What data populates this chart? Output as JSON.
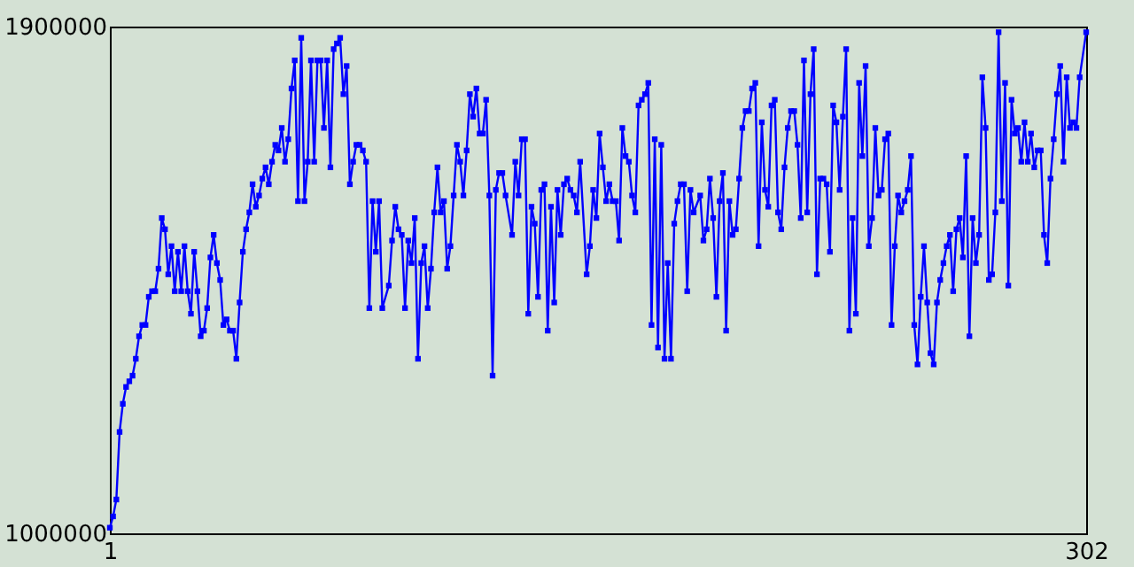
{
  "chart_data": {
    "type": "line",
    "xlim": [
      1,
      302
    ],
    "ylim": [
      1000000,
      1900000
    ],
    "xticks": [
      1,
      302
    ],
    "yticks": [
      1000000,
      1900000
    ],
    "marker": "square",
    "line_style": "solid",
    "x": [
      1,
      2,
      3,
      4,
      5,
      6,
      7,
      8,
      9,
      10,
      11,
      12,
      13,
      14,
      15,
      16,
      17,
      18,
      19,
      20,
      21,
      22,
      23,
      24,
      25,
      26,
      27,
      28,
      29,
      30,
      31,
      32,
      33,
      34,
      35,
      36,
      37,
      38,
      39,
      40,
      41,
      42,
      43,
      44,
      45,
      46,
      47,
      48,
      49,
      50,
      51,
      52,
      53,
      54,
      55,
      56,
      57,
      58,
      59,
      60,
      61,
      62,
      63,
      64,
      65,
      66,
      67,
      68,
      69,
      70,
      71,
      72,
      73,
      74,
      75,
      76,
      77,
      78,
      79,
      80,
      81,
      82,
      83,
      84,
      85,
      87,
      88,
      89,
      90,
      91,
      92,
      93,
      94,
      95,
      96,
      97,
      98,
      99,
      100,
      101,
      102,
      103,
      104,
      105,
      106,
      107,
      108,
      109,
      110,
      111,
      112,
      113,
      114,
      115,
      116,
      117,
      118,
      119,
      120,
      121,
      122,
      123,
      125,
      126,
      127,
      128,
      129,
      130,
      131,
      132,
      133,
      134,
      135,
      136,
      137,
      138,
      139,
      140,
      141,
      142,
      143,
      144,
      145,
      146,
      148,
      149,
      150,
      151,
      152,
      153,
      154,
      155,
      156,
      157,
      158,
      159,
      160,
      161,
      162,
      163,
      164,
      165,
      166,
      167,
      168,
      169,
      170,
      171,
      172,
      173,
      174,
      175,
      176,
      177,
      178,
      179,
      180,
      181,
      183,
      184,
      185,
      186,
      187,
      188,
      189,
      190,
      191,
      192,
      193,
      194,
      195,
      196,
      197,
      198,
      199,
      200,
      201,
      202,
      203,
      204,
      205,
      206,
      207,
      208,
      209,
      210,
      211,
      212,
      213,
      214,
      215,
      216,
      217,
      218,
      219,
      220,
      221,
      222,
      223,
      224,
      225,
      226,
      227,
      228,
      229,
      230,
      231,
      232,
      233,
      234,
      235,
      236,
      237,
      238,
      239,
      240,
      241,
      242,
      243,
      244,
      245,
      246,
      247,
      248,
      249,
      250,
      251,
      252,
      253,
      254,
      255,
      256,
      257,
      258,
      259,
      260,
      261,
      262,
      263,
      264,
      265,
      266,
      267,
      268,
      269,
      270,
      271,
      272,
      273,
      274,
      275,
      276,
      277,
      278,
      279,
      280,
      281,
      282,
      283,
      284,
      285,
      286,
      287,
      288,
      289,
      290,
      291,
      292,
      293,
      294,
      295,
      296,
      297,
      298,
      299,
      300,
      302
    ],
    "series": [
      {
        "color": "#0000ff",
        "values": [
          1010000,
          1030000,
          1060000,
          1180000,
          1230000,
          1260000,
          1270000,
          1280000,
          1310000,
          1350000,
          1370000,
          1370000,
          1420000,
          1430000,
          1430000,
          1470000,
          1560000,
          1540000,
          1460000,
          1510000,
          1430000,
          1500000,
          1430000,
          1510000,
          1430000,
          1390000,
          1500000,
          1430000,
          1350000,
          1360000,
          1400000,
          1490000,
          1530000,
          1480000,
          1450000,
          1370000,
          1380000,
          1360000,
          1360000,
          1310000,
          1410000,
          1500000,
          1540000,
          1570000,
          1620000,
          1580000,
          1600000,
          1630000,
          1650000,
          1620000,
          1660000,
          1690000,
          1680000,
          1720000,
          1660000,
          1700000,
          1790000,
          1840000,
          1590000,
          1880000,
          1590000,
          1660000,
          1840000,
          1660000,
          1840000,
          1840000,
          1720000,
          1840000,
          1650000,
          1860000,
          1870000,
          1880000,
          1780000,
          1830000,
          1620000,
          1660000,
          1690000,
          1690000,
          1680000,
          1660000,
          1400000,
          1590000,
          1500000,
          1590000,
          1400000,
          1440000,
          1520000,
          1580000,
          1540000,
          1530000,
          1400000,
          1520000,
          1480000,
          1560000,
          1310000,
          1480000,
          1510000,
          1400000,
          1470000,
          1570000,
          1650000,
          1570000,
          1590000,
          1470000,
          1510000,
          1600000,
          1690000,
          1660000,
          1600000,
          1680000,
          1780000,
          1740000,
          1790000,
          1710000,
          1710000,
          1770000,
          1600000,
          1280000,
          1610000,
          1640000,
          1640000,
          1600000,
          1530000,
          1660000,
          1600000,
          1700000,
          1700000,
          1390000,
          1580000,
          1550000,
          1420000,
          1610000,
          1620000,
          1360000,
          1580000,
          1410000,
          1610000,
          1530000,
          1620000,
          1630000,
          1610000,
          1600000,
          1570000,
          1660000,
          1460000,
          1510000,
          1610000,
          1560000,
          1710000,
          1650000,
          1590000,
          1620000,
          1590000,
          1590000,
          1520000,
          1720000,
          1670000,
          1660000,
          1600000,
          1570000,
          1760000,
          1770000,
          1780000,
          1800000,
          1370000,
          1700000,
          1330000,
          1690000,
          1310000,
          1480000,
          1310000,
          1550000,
          1590000,
          1620000,
          1620000,
          1430000,
          1610000,
          1570000,
          1600000,
          1520000,
          1540000,
          1630000,
          1560000,
          1420000,
          1590000,
          1640000,
          1360000,
          1590000,
          1530000,
          1540000,
          1630000,
          1720000,
          1750000,
          1750000,
          1790000,
          1800000,
          1510000,
          1730000,
          1610000,
          1580000,
          1760000,
          1770000,
          1570000,
          1540000,
          1650000,
          1720000,
          1750000,
          1750000,
          1690000,
          1560000,
          1840000,
          1570000,
          1780000,
          1860000,
          1460000,
          1630000,
          1630000,
          1620000,
          1500000,
          1760000,
          1730000,
          1610000,
          1740000,
          1860000,
          1360000,
          1560000,
          1390000,
          1800000,
          1670000,
          1830000,
          1510000,
          1560000,
          1720000,
          1600000,
          1610000,
          1700000,
          1710000,
          1370000,
          1510000,
          1600000,
          1570000,
          1590000,
          1610000,
          1670000,
          1370000,
          1300000,
          1420000,
          1510000,
          1410000,
          1320000,
          1300000,
          1410000,
          1450000,
          1480000,
          1510000,
          1530000,
          1430000,
          1540000,
          1560000,
          1490000,
          1670000,
          1350000,
          1560000,
          1480000,
          1530000,
          1810000,
          1720000,
          1450000,
          1460000,
          1570000,
          1890000,
          1590000,
          1800000,
          1440000,
          1770000,
          1710000,
          1720000,
          1660000,
          1730000,
          1660000,
          1710000,
          1650000,
          1680000,
          1680000,
          1530000,
          1480000,
          1630000,
          1700000,
          1780000,
          1830000,
          1660000,
          1810000,
          1720000,
          1730000,
          1720000,
          1810000,
          1890000
        ]
      }
    ]
  }
}
